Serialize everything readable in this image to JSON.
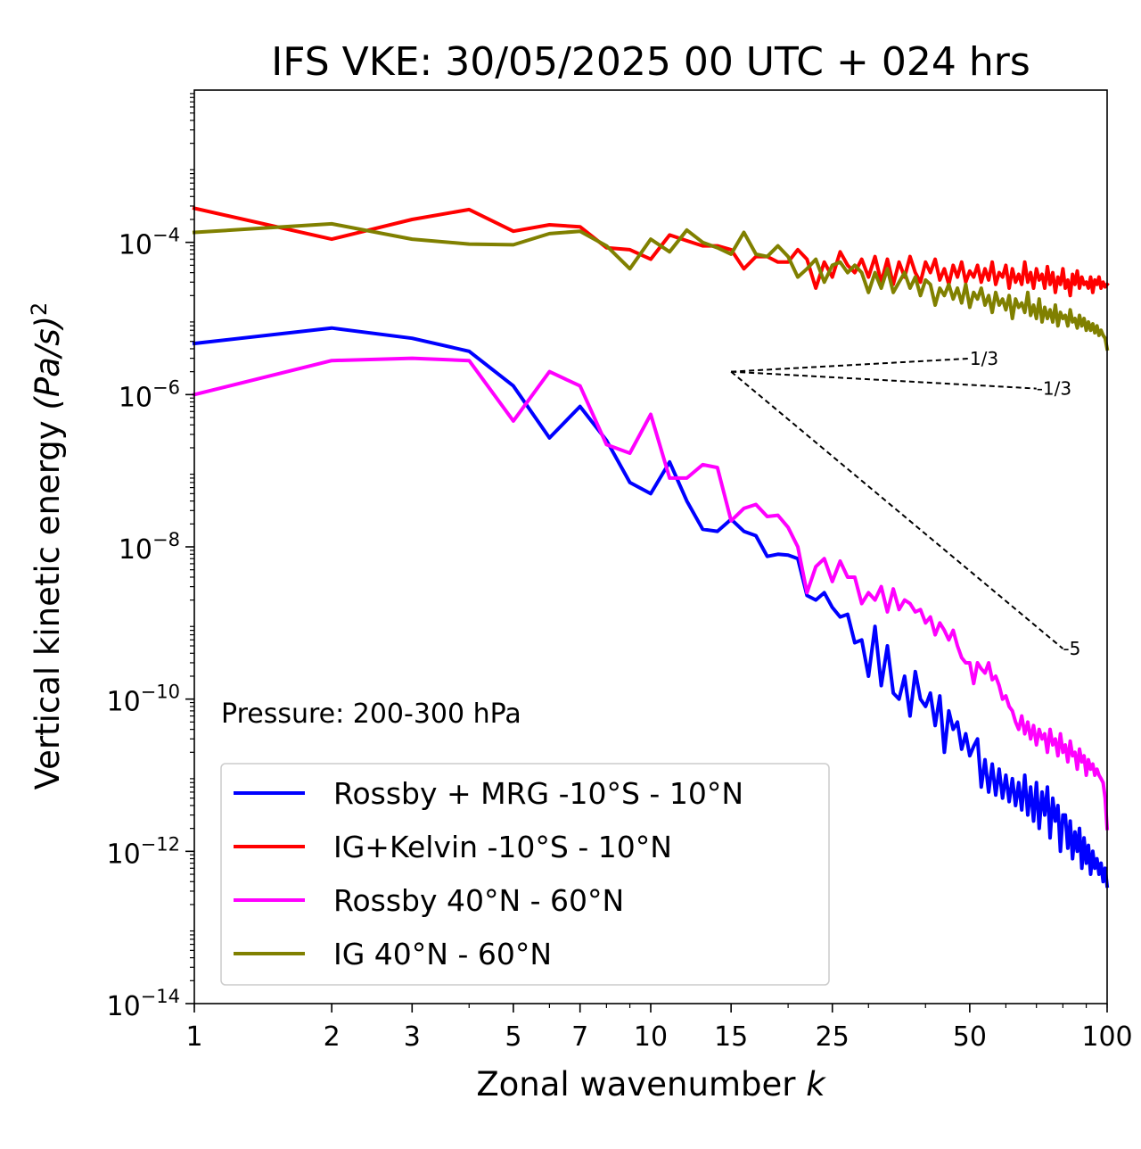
{
  "chart_data": {
    "type": "line",
    "title": "IFS VKE: 30/05/2025 00 UTC + 024 hrs",
    "xlabel": "Zonal wavenumber",
    "xlabel_var": "k",
    "ylabel": "Vertical kinetic energy",
    "ylabel_unit": "(Pa/s)",
    "ylabel_unit_sup": "2",
    "xscale": "log",
    "yscale": "log",
    "xlim": [
      1,
      100
    ],
    "ylim": [
      1e-14,
      0.01
    ],
    "grid": false,
    "x_ticks": [
      1,
      2,
      3,
      5,
      7,
      10,
      15,
      25,
      50,
      100
    ],
    "x_tick_labels": [
      "1",
      "2",
      "3",
      "5",
      "7",
      "10",
      "15",
      "25",
      "50",
      "100"
    ],
    "y_ticks": [
      {
        "value": 0.0001,
        "base": "10",
        "exp": "−4"
      },
      {
        "value": 1e-06,
        "base": "10",
        "exp": "−6"
      },
      {
        "value": 1e-08,
        "base": "10",
        "exp": "−8"
      },
      {
        "value": 1e-10,
        "base": "10",
        "exp": "−10"
      },
      {
        "value": 1e-12,
        "base": "10",
        "exp": "−12"
      },
      {
        "value": 1e-14,
        "base": "10",
        "exp": "−14"
      }
    ],
    "annotation": "Pressure: 200-300 hPa",
    "legend_position": "lower-left",
    "series": [
      {
        "name": "Rossby + MRG -10°S - 10°N",
        "color": "#0000ff",
        "x": [
          1,
          2,
          3,
          4,
          5,
          6,
          7,
          8,
          9,
          10,
          11,
          12,
          13,
          14,
          15,
          16,
          17,
          18,
          19,
          20,
          21,
          22,
          23,
          24,
          25,
          26,
          27,
          28,
          29,
          30,
          31,
          32,
          33,
          34,
          35,
          36,
          37,
          38,
          39,
          40,
          41,
          42,
          43,
          44,
          45,
          46,
          47,
          48,
          49,
          50,
          51,
          52,
          53,
          54,
          55,
          56,
          57,
          58,
          59,
          60,
          61,
          62,
          63,
          64,
          65,
          66,
          67,
          68,
          69,
          70,
          71,
          72,
          73,
          74,
          75,
          76,
          77,
          78,
          79,
          80,
          81,
          82,
          83,
          84,
          85,
          86,
          87,
          88,
          89,
          90,
          91,
          92,
          93,
          94,
          95,
          96,
          97,
          98,
          99,
          100
        ],
        "y": [
          4.7e-06,
          7.5e-06,
          5.5e-06,
          3.7e-06,
          1.3e-06,
          2.7e-07,
          7e-07,
          2.5e-07,
          7e-08,
          5e-08,
          1.3e-07,
          4e-08,
          1.7e-08,
          1.6e-08,
          2.3e-08,
          1.6e-08,
          1.4e-08,
          7.5e-09,
          8e-09,
          7.8e-09,
          7e-09,
          2.3e-09,
          2e-09,
          2.5e-09,
          1.6e-09,
          1.2e-09,
          1.3e-09,
          5.5e-10,
          6e-10,
          2e-10,
          9e-10,
          1.5e-10,
          5e-10,
          1.2e-10,
          1e-10,
          2e-10,
          6e-11,
          2.3e-10,
          1e-10,
          8e-11,
          1.2e-10,
          4.5e-11,
          1.1e-10,
          2e-11,
          7e-11,
          4e-11,
          5e-11,
          2.2e-11,
          3.5e-11,
          1.8e-11,
          2.4e-11,
          3e-11,
          7e-12,
          1.6e-11,
          6e-12,
          1.4e-11,
          5.5e-12,
          1.2e-11,
          5e-12,
          1e-11,
          4.5e-12,
          9e-12,
          4e-12,
          8e-12,
          3.5e-12,
          1e-11,
          3e-12,
          7e-12,
          2.5e-12,
          8e-12,
          2e-12,
          6e-12,
          3e-12,
          7e-12,
          1.5e-12,
          5e-12,
          2.5e-12,
          4e-12,
          1e-12,
          3e-12,
          3e-12,
          1.1e-12,
          2.5e-12,
          8e-13,
          1.8e-12,
          1e-12,
          2e-12,
          6e-13,
          1.5e-12,
          7e-13,
          1.2e-12,
          5e-13,
          1e-12,
          6e-13,
          8e-13,
          5e-13,
          7e-13,
          4e-13,
          6e-13,
          3.5e-13
        ]
      },
      {
        "name": "IG+Kelvin -10°S - 10°N",
        "color": "#ff0000",
        "x": [
          1,
          2,
          3,
          4,
          5,
          6,
          7,
          8,
          9,
          10,
          11,
          12,
          13,
          14,
          15,
          16,
          17,
          18,
          19,
          20,
          21,
          22,
          23,
          24,
          25,
          26,
          27,
          28,
          29,
          30,
          31,
          32,
          33,
          34,
          35,
          36,
          37,
          38,
          39,
          40,
          41,
          42,
          43,
          44,
          45,
          46,
          47,
          48,
          49,
          50,
          51,
          52,
          53,
          54,
          55,
          56,
          57,
          58,
          59,
          60,
          61,
          62,
          63,
          64,
          65,
          66,
          67,
          68,
          69,
          70,
          71,
          72,
          73,
          74,
          75,
          76,
          77,
          78,
          79,
          80,
          81,
          82,
          83,
          84,
          85,
          86,
          87,
          88,
          89,
          90,
          91,
          92,
          93,
          94,
          95,
          96,
          97,
          98,
          99,
          100
        ],
        "y": [
          0.00028,
          0.00011,
          0.0002,
          0.00027,
          0.00014,
          0.00017,
          0.00016,
          8.5e-05,
          8e-05,
          6e-05,
          0.000125,
          0.000105,
          9e-05,
          9e-05,
          8e-05,
          4.5e-05,
          6.5e-05,
          6.5e-05,
          5.5e-05,
          5.5e-05,
          8e-05,
          6e-05,
          2.5e-05,
          5.5e-05,
          3.5e-05,
          7.5e-05,
          5e-05,
          4e-05,
          6e-05,
          3.5e-05,
          6.5e-05,
          3e-05,
          6e-05,
          2.8e-05,
          5.5e-05,
          3.5e-05,
          6.5e-05,
          4e-05,
          3e-05,
          5.5e-05,
          4e-05,
          6e-05,
          3.2e-05,
          4.5e-05,
          2.8e-05,
          5e-05,
          3.5e-05,
          5.5e-05,
          3e-05,
          4.2e-05,
          3.5e-05,
          5e-05,
          3e-05,
          4.5e-05,
          3.2e-05,
          5.5e-05,
          2.8e-05,
          4e-05,
          3.5e-05,
          5e-05,
          2.5e-05,
          4.5e-05,
          3e-05,
          3.8e-05,
          2.8e-05,
          5.5e-05,
          3e-05,
          4e-05,
          2.5e-05,
          4.5e-05,
          3.2e-05,
          3.8e-05,
          2.5e-05,
          4.8e-05,
          2.8e-05,
          4e-05,
          2.2e-05,
          3.5e-05,
          2.8e-05,
          4.5e-05,
          2.5e-05,
          3.2e-05,
          2e-05,
          3.8e-05,
          2.8e-05,
          4.2e-05,
          2.5e-05,
          3.5e-05,
          2.8e-05,
          3e-05,
          2.5e-05,
          3.5e-05,
          2.2e-05,
          3.2e-05,
          2.8e-05,
          3.5e-05,
          2.5e-05,
          3e-05,
          2.6e-05,
          2.8e-05
        ]
      },
      {
        "name": "Rossby 40°N - 60°N",
        "color": "#ff00ff",
        "x": [
          1,
          2,
          3,
          4,
          5,
          6,
          7,
          8,
          9,
          10,
          11,
          12,
          13,
          14,
          15,
          16,
          17,
          18,
          19,
          20,
          21,
          22,
          23,
          24,
          25,
          26,
          27,
          28,
          29,
          30,
          31,
          32,
          33,
          34,
          35,
          36,
          37,
          38,
          39,
          40,
          41,
          42,
          43,
          44,
          45,
          46,
          47,
          48,
          49,
          50,
          51,
          52,
          53,
          54,
          55,
          56,
          57,
          58,
          59,
          60,
          61,
          62,
          63,
          64,
          65,
          66,
          67,
          68,
          69,
          70,
          71,
          72,
          73,
          74,
          75,
          76,
          77,
          78,
          79,
          80,
          81,
          82,
          83,
          84,
          85,
          86,
          87,
          88,
          89,
          90,
          91,
          92,
          93,
          94,
          95,
          96,
          97,
          98,
          99,
          100
        ],
        "y": [
          1e-06,
          2.8e-06,
          3e-06,
          2.8e-06,
          4.5e-07,
          2e-06,
          1.3e-06,
          2.2e-07,
          1.7e-07,
          5.5e-07,
          8e-08,
          8e-08,
          1.2e-07,
          1.1e-07,
          2.2e-08,
          3.2e-08,
          3.6e-08,
          2.5e-08,
          2.6e-08,
          1.8e-08,
          1e-08,
          2.5e-09,
          5.5e-09,
          7e-09,
          3.5e-09,
          6.5e-09,
          4e-09,
          4e-09,
          1.8e-09,
          2.5e-09,
          2e-09,
          3e-09,
          1.4e-09,
          2.8e-09,
          1.5e-09,
          2e-09,
          1.8e-09,
          1.4e-09,
          1.5e-09,
          1e-09,
          1.2e-09,
          7e-10,
          1e-09,
          8e-10,
          6e-10,
          8e-10,
          5e-10,
          3.5e-10,
          3e-10,
          3e-10,
          1.6e-10,
          3e-10,
          2.5e-10,
          2.2e-10,
          3e-10,
          1.8e-10,
          2e-10,
          1.5e-10,
          1e-10,
          1.1e-10,
          8e-11,
          7e-11,
          5e-11,
          4e-11,
          6e-11,
          3.5e-11,
          5e-11,
          3e-11,
          4.5e-11,
          2.5e-11,
          4e-11,
          3e-11,
          3.5e-11,
          2e-11,
          4e-11,
          2.5e-11,
          3e-11,
          1.8e-11,
          3.5e-11,
          2e-11,
          2.5e-11,
          1.5e-11,
          2.8e-11,
          1.8e-11,
          2e-11,
          1.2e-11,
          2.2e-11,
          1.5e-11,
          1.8e-11,
          1e-11,
          1.6e-11,
          1.2e-11,
          1.4e-11,
          1e-11,
          1.2e-11,
          1e-11,
          9e-12,
          8e-12,
          5e-12,
          2e-12
        ]
      },
      {
        "name": "IG 40°N - 60°N",
        "color": "#808000",
        "x": [
          1,
          2,
          3,
          4,
          5,
          6,
          7,
          8,
          9,
          10,
          11,
          12,
          13,
          14,
          15,
          16,
          17,
          18,
          19,
          20,
          21,
          22,
          23,
          24,
          25,
          26,
          27,
          28,
          29,
          30,
          31,
          32,
          33,
          34,
          35,
          36,
          37,
          38,
          39,
          40,
          41,
          42,
          43,
          44,
          45,
          46,
          47,
          48,
          49,
          50,
          51,
          52,
          53,
          54,
          55,
          56,
          57,
          58,
          59,
          60,
          61,
          62,
          63,
          64,
          65,
          66,
          67,
          68,
          69,
          70,
          71,
          72,
          73,
          74,
          75,
          76,
          77,
          78,
          79,
          80,
          81,
          82,
          83,
          84,
          85,
          86,
          87,
          88,
          89,
          90,
          91,
          92,
          93,
          94,
          95,
          96,
          97,
          98,
          99,
          100
        ],
        "y": [
          0.000135,
          0.000175,
          0.00011,
          9.5e-05,
          9.3e-05,
          0.00013,
          0.00014,
          9e-05,
          4.5e-05,
          0.00011,
          7.5e-05,
          0.000145,
          0.0001,
          8.5e-05,
          7e-05,
          0.000135,
          7e-05,
          6.5e-05,
          9e-05,
          6.5e-05,
          3.5e-05,
          4.5e-05,
          6e-05,
          3e-05,
          5e-05,
          5.5e-05,
          4e-05,
          5e-05,
          4e-05,
          2.2e-05,
          4e-05,
          2.5e-05,
          4.5e-05,
          2.2e-05,
          3e-05,
          4e-05,
          2.5e-05,
          3.5e-05,
          2e-05,
          3.2e-05,
          2.8e-05,
          1.5e-05,
          2.5e-05,
          2e-05,
          2.8e-05,
          1.8e-05,
          2.5e-05,
          1.6e-05,
          2.8e-05,
          1.4e-05,
          2.2e-05,
          1.8e-05,
          2.5e-05,
          1.5e-05,
          2e-05,
          1.2e-05,
          2.2e-05,
          1.5e-05,
          1.8e-05,
          1.3e-05,
          2e-05,
          1e-05,
          1.8e-05,
          1.4e-05,
          1.6e-05,
          1.2e-05,
          2.2e-05,
          1.1e-05,
          1.5e-05,
          1e-05,
          1.8e-05,
          9e-06,
          1.4e-05,
          1e-05,
          1.3e-05,
          9e-06,
          1.5e-05,
          8e-06,
          1.2e-05,
          1e-05,
          1.1e-05,
          8e-06,
          1.3e-05,
          9e-06,
          1e-05,
          7.5e-06,
          1.1e-05,
          8e-06,
          1e-05,
          7e-06,
          9e-06,
          7e-06,
          8.5e-06,
          6.5e-06,
          8e-06,
          6e-06,
          7e-06,
          6e-06,
          5.5e-06,
          4e-06
        ]
      }
    ],
    "slope_lines": [
      {
        "label": "1/3",
        "x": [
          15,
          50
        ],
        "y": [
          2e-06,
          2.98e-06
        ]
      },
      {
        "label": "-1/3",
        "x": [
          15,
          70
        ],
        "y": [
          2e-06,
          1.2e-06
        ]
      },
      {
        "label": "-5",
        "x": [
          15,
          80
        ],
        "y": [
          2e-06,
          4.6e-10
        ]
      }
    ]
  }
}
